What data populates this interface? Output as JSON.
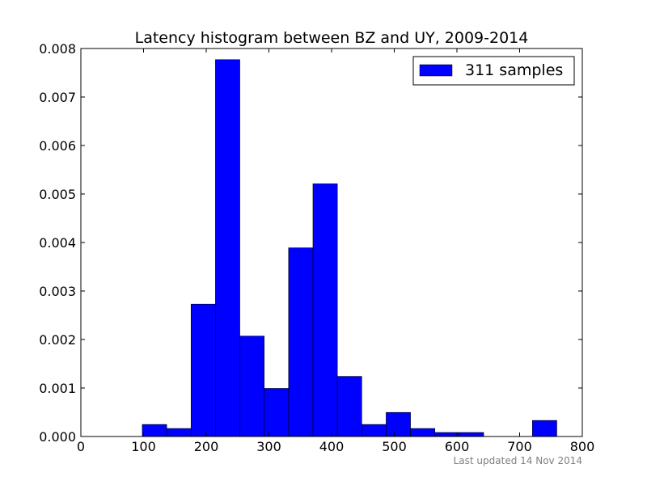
{
  "chart_data": {
    "type": "bar",
    "title": "Latency histogram between BZ and UY, 2009-2014",
    "xlabel": "",
    "ylabel": "",
    "xlim": [
      0,
      800
    ],
    "ylim": [
      0,
      0.008
    ],
    "xticks": [
      "0",
      "100",
      "200",
      "300",
      "400",
      "500",
      "600",
      "700",
      "800"
    ],
    "yticks": [
      "0.000",
      "0.001",
      "0.002",
      "0.003",
      "0.004",
      "0.005",
      "0.006",
      "0.007",
      "0.008"
    ],
    "grid": false,
    "legend_placement": "top-right",
    "bin_edges": [
      98,
      136.9,
      175.8,
      214.7,
      253.6,
      292.5,
      331.4,
      370.3,
      409.2,
      448.1,
      487,
      525.9,
      564.8,
      603.7,
      642.6,
      681.5,
      720.4,
      759.3
    ],
    "series": [
      {
        "name": "311 samples",
        "color": "#0000ff",
        "values": [
          0.000248,
          0.000165,
          0.00273,
          0.00777,
          0.00207,
          0.000992,
          0.00389,
          0.00521,
          0.00124,
          0.000248,
          0.000496,
          0.000165,
          8.27e-05,
          8.27e-05,
          0,
          0,
          0.000331
        ]
      }
    ],
    "footnote": "Last updated 14 Nov 2014"
  }
}
